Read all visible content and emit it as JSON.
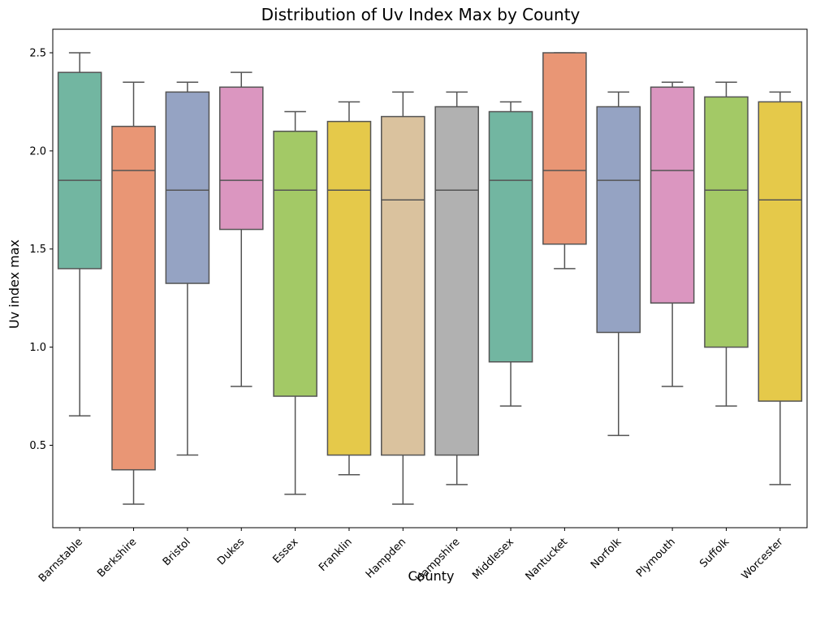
{
  "chart_data": {
    "type": "box",
    "title": "Distribution of Uv Index Max by County",
    "xlabel": "County",
    "ylabel": "Uv index max",
    "ylim": [
      0.08,
      2.62
    ],
    "yticks": [
      0.5,
      1.0,
      1.5,
      2.0,
      2.5
    ],
    "ytick_labels": [
      "0.5",
      "1.0",
      "1.5",
      "2.0",
      "2.5"
    ],
    "grid": false,
    "legend": "none",
    "categories": [
      "Barnstable",
      "Berkshire",
      "Bristol",
      "Dukes",
      "Essex",
      "Franklin",
      "Hampden",
      "Hampshire",
      "Middlesex",
      "Nantucket",
      "Norfolk",
      "Plymouth",
      "Suffolk",
      "Worcester"
    ],
    "boxes": [
      {
        "whisker_low": 0.65,
        "q1": 1.4,
        "median": 1.85,
        "q3": 2.4,
        "whisker_high": 2.5
      },
      {
        "whisker_low": 0.2,
        "q1": 0.375,
        "median": 1.9,
        "q3": 2.125,
        "whisker_high": 2.35
      },
      {
        "whisker_low": 0.45,
        "q1": 1.325,
        "median": 1.8,
        "q3": 2.3,
        "whisker_high": 2.35
      },
      {
        "whisker_low": 0.8,
        "q1": 1.6,
        "median": 1.85,
        "q3": 2.325,
        "whisker_high": 2.4
      },
      {
        "whisker_low": 0.25,
        "q1": 0.75,
        "median": 1.8,
        "q3": 2.1,
        "whisker_high": 2.2
      },
      {
        "whisker_low": 0.35,
        "q1": 0.45,
        "median": 1.8,
        "q3": 2.15,
        "whisker_high": 2.25
      },
      {
        "whisker_low": 0.2,
        "q1": 0.45,
        "median": 1.75,
        "q3": 2.175,
        "whisker_high": 2.3
      },
      {
        "whisker_low": 0.3,
        "q1": 0.45,
        "median": 1.8,
        "q3": 2.225,
        "whisker_high": 2.3
      },
      {
        "whisker_low": 0.7,
        "q1": 0.925,
        "median": 1.85,
        "q3": 2.2,
        "whisker_high": 2.25
      },
      {
        "whisker_low": 1.4,
        "q1": 1.525,
        "median": 1.9,
        "q3": 2.5,
        "whisker_high": 2.5
      },
      {
        "whisker_low": 0.55,
        "q1": 1.075,
        "median": 1.85,
        "q3": 2.225,
        "whisker_high": 2.3
      },
      {
        "whisker_low": 0.8,
        "q1": 1.225,
        "median": 1.9,
        "q3": 2.325,
        "whisker_high": 2.35
      },
      {
        "whisker_low": 0.7,
        "q1": 1.0,
        "median": 1.8,
        "q3": 2.275,
        "whisker_high": 2.35
      },
      {
        "whisker_low": 0.3,
        "q1": 0.725,
        "median": 1.75,
        "q3": 2.25,
        "whisker_high": 2.3
      }
    ],
    "colors": [
      "#72b6a1",
      "#e99675",
      "#95a3c3",
      "#db96c0",
      "#a3c966",
      "#e5c94a",
      "#dac29e",
      "#b1b1b1",
      "#72b6a1",
      "#e99675",
      "#95a3c3",
      "#db96c0",
      "#a3c966",
      "#e5c94a"
    ],
    "edge_color": "#545454"
  }
}
